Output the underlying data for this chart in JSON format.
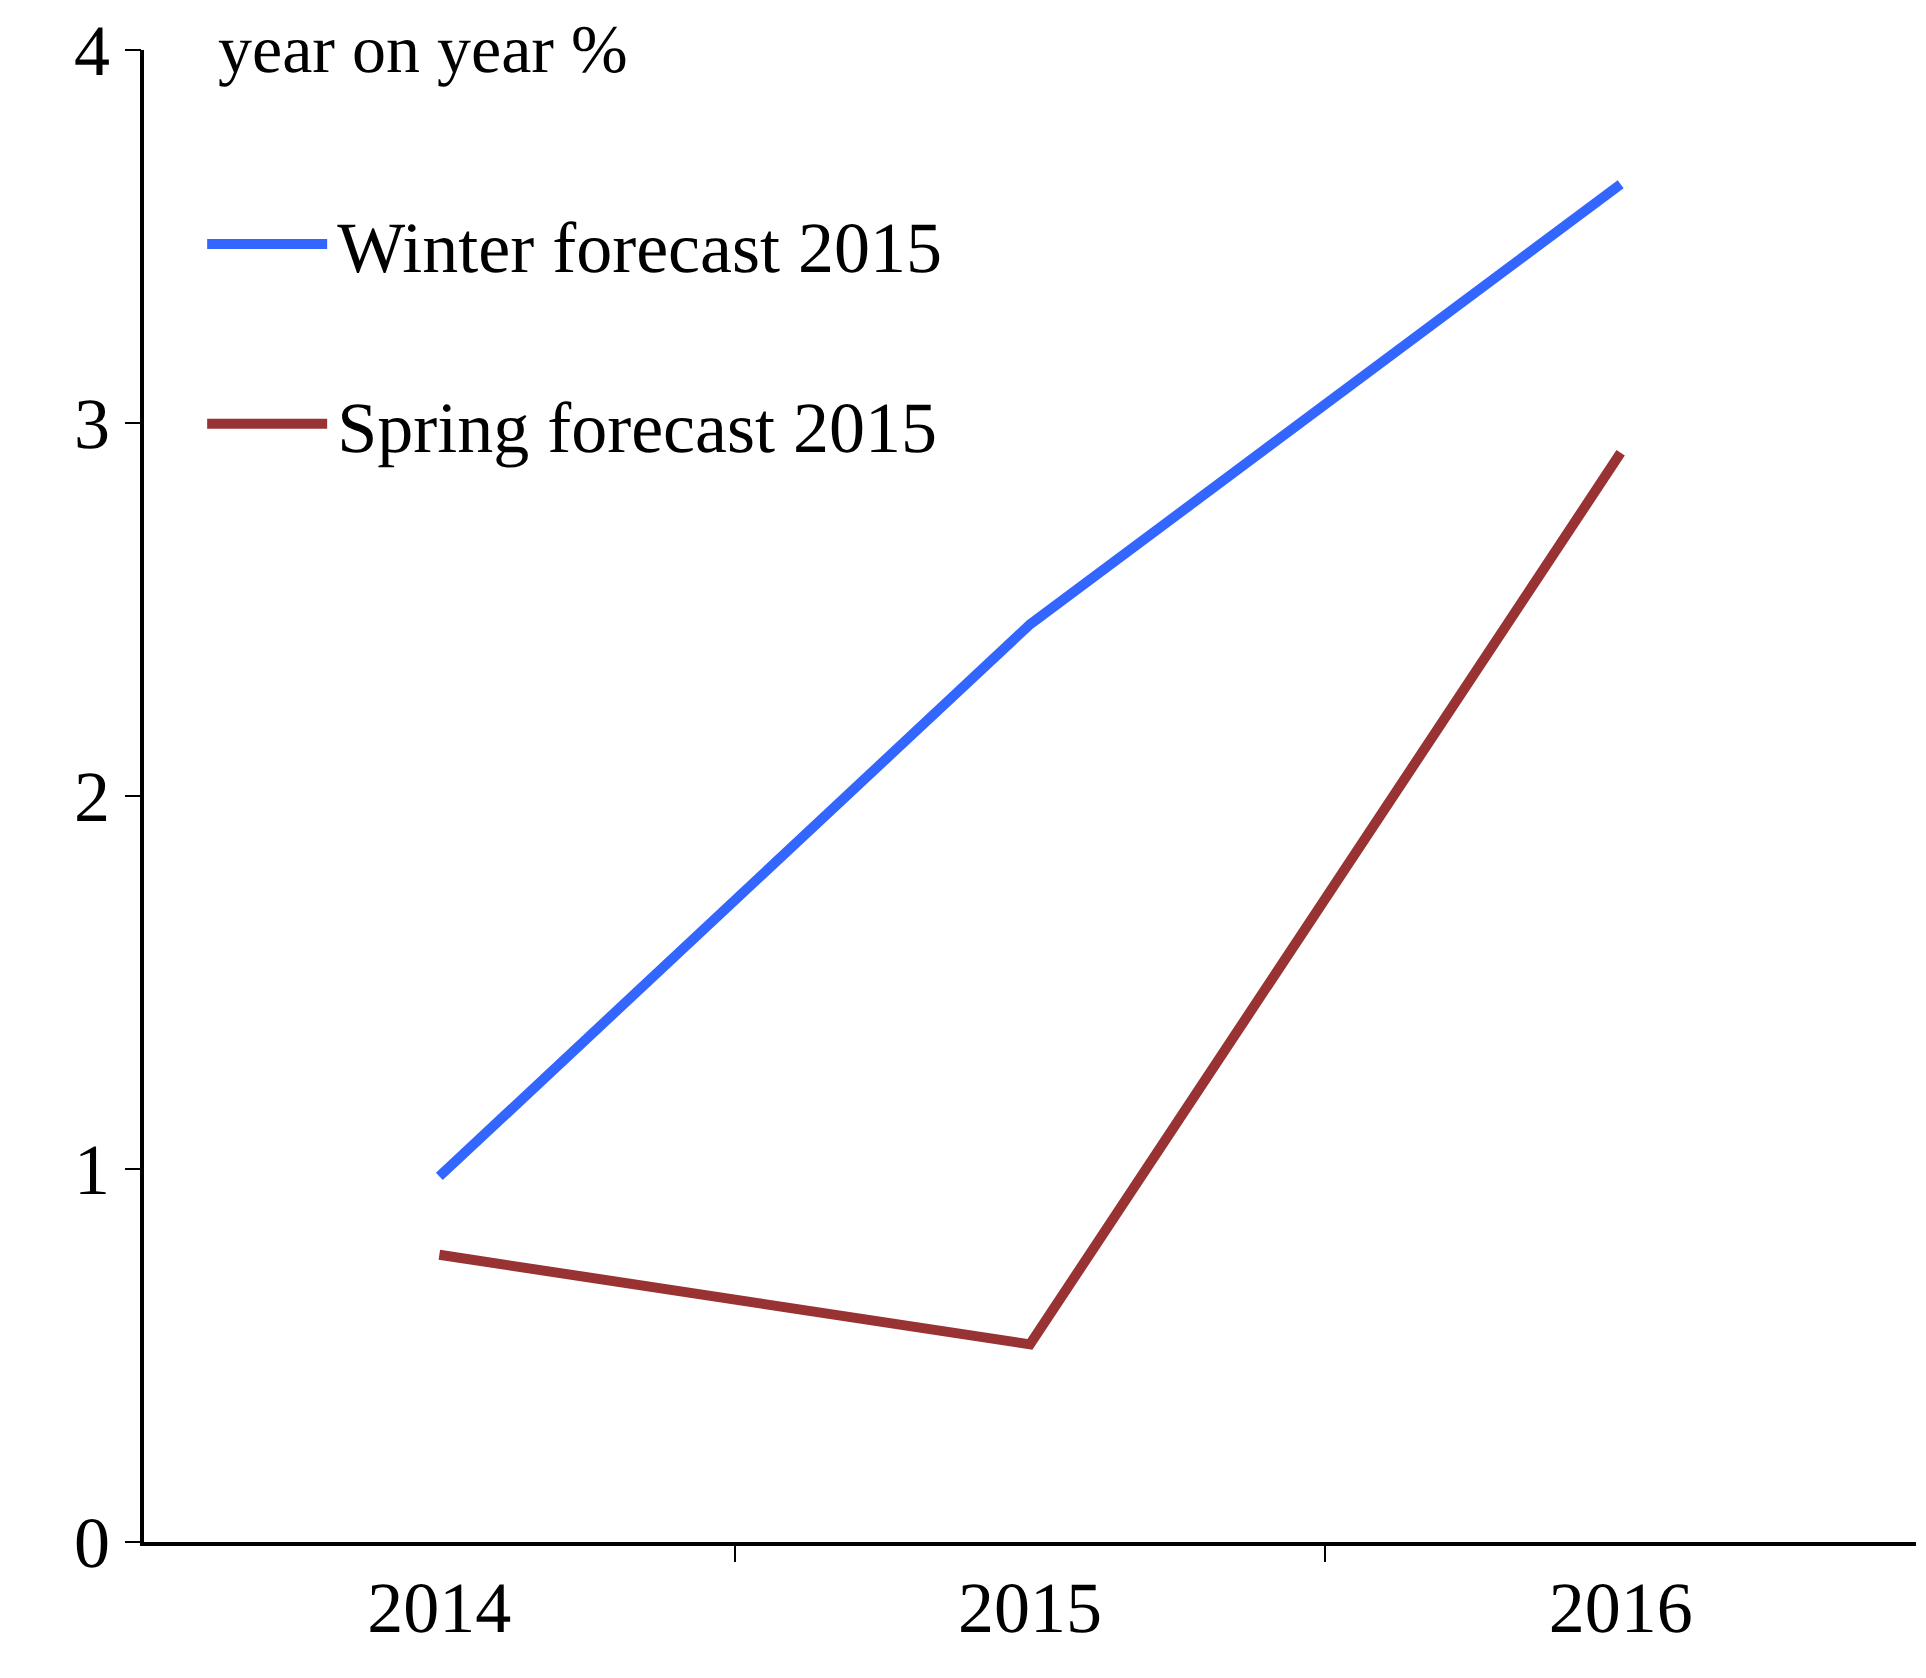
{
  "chart_data": {
    "type": "line",
    "ylabel": "year on year %",
    "categories": [
      "2014",
      "2015",
      "2016"
    ],
    "series": [
      {
        "name": "Winter forecast 2015",
        "color": "#3366ff",
        "values": [
          0.98,
          2.46,
          3.64
        ]
      },
      {
        "name": "Spring forecast 2015",
        "color": "#993333",
        "values": [
          0.77,
          0.53,
          2.92
        ]
      }
    ],
    "ylim": [
      0,
      4
    ],
    "yticks": [
      0,
      1,
      2,
      3,
      4
    ],
    "legend": "top left",
    "marker": "none",
    "line_style": "solid"
  }
}
